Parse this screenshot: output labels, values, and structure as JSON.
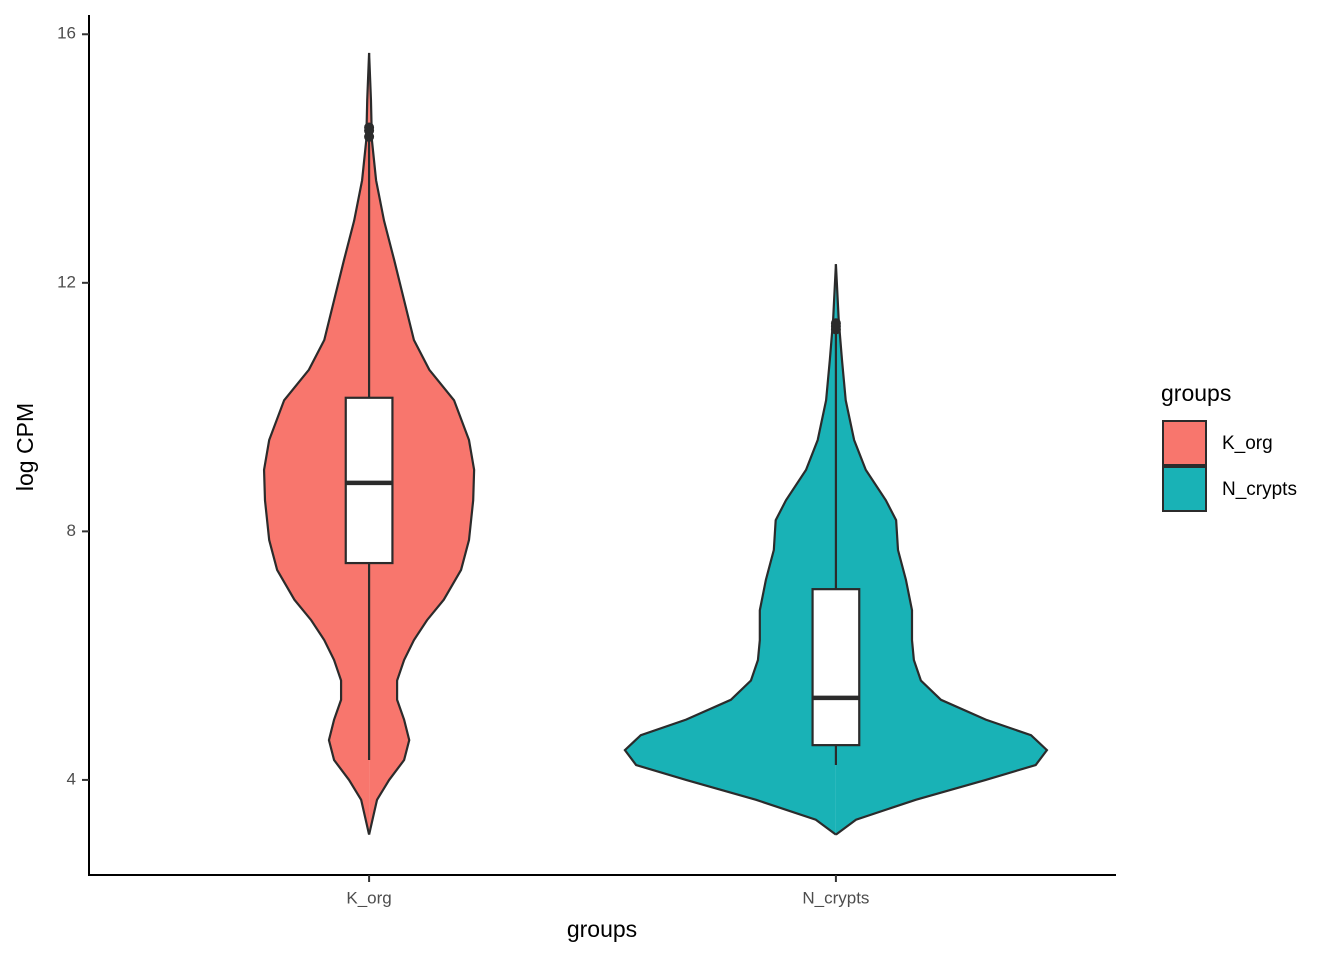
{
  "chart_data": {
    "type": "violin",
    "xlabel": "groups",
    "ylabel": "log CPM",
    "legend_title": "groups",
    "ylim": [
      2.47,
      16.31
    ],
    "yticks": [
      4,
      8,
      12,
      16
    ],
    "categories": [
      "K_org",
      "N_crypts"
    ],
    "series": [
      {
        "name": "K_org",
        "color": "#f8766d",
        "violin": {
          "y": [
            3.12,
            3.68,
            4.0,
            4.32,
            4.64,
            4.97,
            5.29,
            5.6,
            5.93,
            6.25,
            6.57,
            6.9,
            7.38,
            7.86,
            8.5,
            8.99,
            9.47,
            10.11,
            10.6,
            11.08,
            11.72,
            12.36,
            13.0,
            13.65,
            14.3,
            14.94,
            15.7
          ],
          "width": [
            0,
            0.017,
            0.043,
            0.075,
            0.086,
            0.075,
            0.06,
            0.06,
            0.075,
            0.096,
            0.124,
            0.16,
            0.197,
            0.214,
            0.223,
            0.225,
            0.214,
            0.182,
            0.129,
            0.096,
            0.075,
            0.054,
            0.032,
            0.015,
            0.006,
            0.004,
            0
          ]
        },
        "box": {
          "whisker_low": 4.32,
          "q1": 7.49,
          "median": 8.78,
          "q3": 10.15,
          "whisker_high": 14.3
        },
        "outliers": [
          14.35,
          14.45,
          14.5
        ]
      },
      {
        "name": "N_crypts",
        "color": "#19b2b6",
        "violin": {
          "y": [
            3.12,
            3.36,
            3.68,
            4.0,
            4.24,
            4.48,
            4.72,
            4.97,
            5.29,
            5.6,
            5.93,
            6.25,
            6.73,
            7.22,
            7.7,
            8.18,
            8.5,
            8.99,
            9.47,
            10.11,
            10.76,
            11.4,
            12.3
          ],
          "width": [
            0,
            0.043,
            0.171,
            0.321,
            0.428,
            0.452,
            0.418,
            0.321,
            0.225,
            0.182,
            0.167,
            0.163,
            0.163,
            0.15,
            0.133,
            0.129,
            0.107,
            0.064,
            0.039,
            0.021,
            0.013,
            0.006,
            0
          ]
        },
        "box": {
          "whisker_low": 4.24,
          "q1": 4.56,
          "median": 5.32,
          "q3": 7.07,
          "whisker_high": 11.24
        },
        "outliers": [
          11.25,
          11.3,
          11.35
        ]
      }
    ]
  }
}
